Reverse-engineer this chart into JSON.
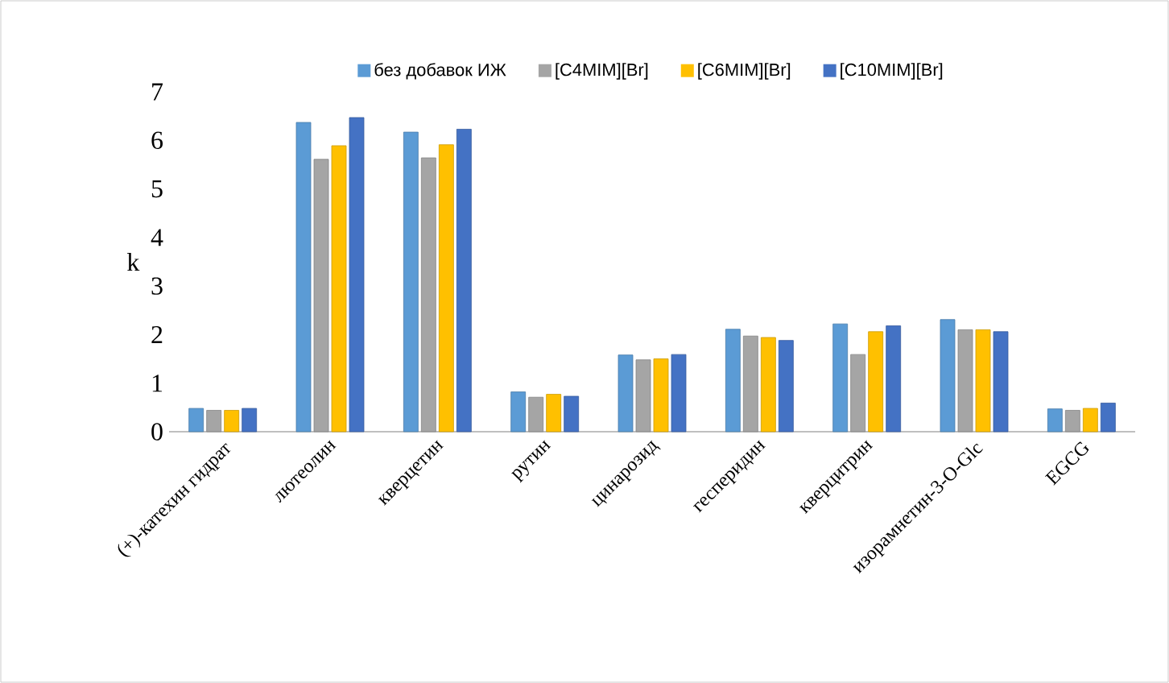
{
  "chart_data": {
    "type": "bar",
    "ylabel": "k",
    "categories": [
      "(+)-катехин гидрат",
      "лютеолин",
      "кверцетин",
      "рутин",
      "цинарозид",
      "гесперидин",
      "кверцитрин",
      "изорамнетин-3-O-Glc",
      "EGCG"
    ],
    "series": [
      {
        "name": "без добавок ИЖ",
        "color": "#5b9bd5",
        "values": [
          0.48,
          6.37,
          6.17,
          0.82,
          1.58,
          2.11,
          2.22,
          2.31,
          0.47
        ]
      },
      {
        "name": "[C4MIM][Br]",
        "color": "#a5a5a5",
        "values": [
          0.44,
          5.61,
          5.64,
          0.71,
          1.48,
          1.97,
          1.59,
          2.1,
          0.44
        ]
      },
      {
        "name": "[C6MIM][Br]",
        "color": "#ffc000",
        "values": [
          0.44,
          5.89,
          5.91,
          0.77,
          1.5,
          1.94,
          2.06,
          2.1,
          0.48
        ]
      },
      {
        "name": "[C10MIM][Br]",
        "color": "#4472c4",
        "values": [
          0.48,
          6.47,
          6.23,
          0.73,
          1.59,
          1.88,
          2.18,
          2.06,
          0.59
        ]
      }
    ],
    "ylim": [
      0,
      7
    ],
    "yticks": [
      0,
      1,
      2,
      3,
      4,
      5,
      6,
      7
    ],
    "grid": false,
    "legend": "top"
  }
}
